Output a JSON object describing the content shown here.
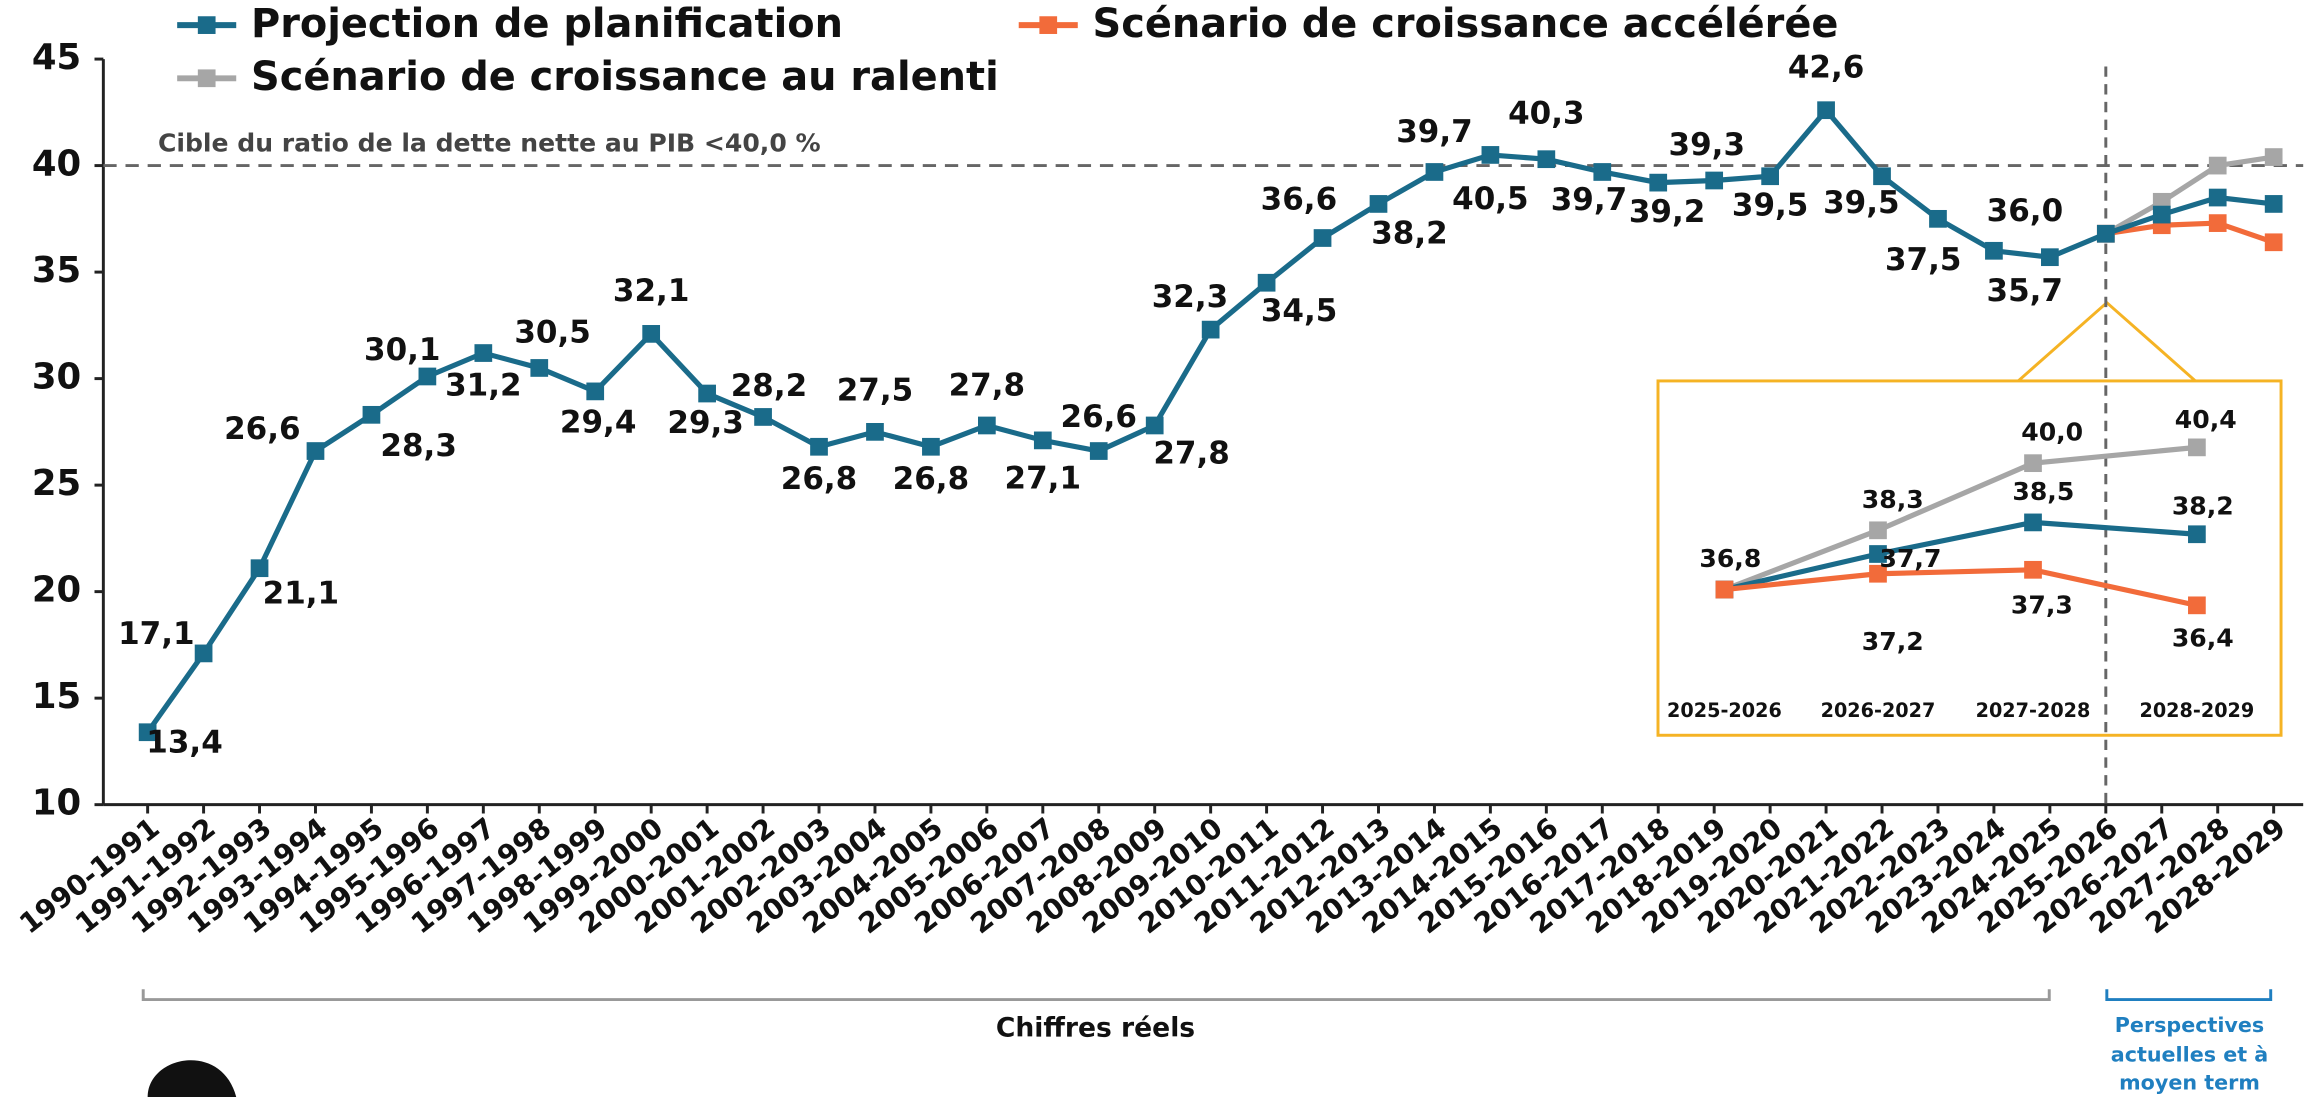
{
  "chart_data": {
    "type": "line",
    "categories": [
      "1990-1991",
      "1991-1992",
      "1992-1993",
      "1993-1994",
      "1994-1995",
      "1995-1996",
      "1996-1997",
      "1997-1998",
      "1998-1999",
      "1999-2000",
      "2000-2001",
      "2001-2002",
      "2002-2003",
      "2003-2004",
      "2004-2005",
      "2005-2006",
      "2006-2007",
      "2007-2008",
      "2008-2009",
      "2009-2010",
      "2010-2011",
      "2011-2012",
      "2012-2013",
      "2013-2014",
      "2014-2015",
      "2015-2016",
      "2016-2017",
      "2017-2018",
      "2018-2019",
      "2019-2020",
      "2020-2021",
      "2021-2022",
      "2022-2023",
      "2023-2024",
      "2024-2025",
      "2025-2026",
      "2026-2027",
      "2027-2028",
      "2028-2029"
    ],
    "series": [
      {
        "name": "Projection de planification",
        "color": "#1a6b8a",
        "values": [
          13.4,
          17.1,
          21.1,
          26.6,
          28.3,
          30.1,
          31.2,
          30.5,
          29.4,
          32.1,
          29.3,
          28.2,
          26.8,
          27.5,
          26.8,
          27.8,
          27.1,
          26.6,
          27.8,
          32.3,
          34.5,
          36.6,
          38.2,
          39.7,
          40.5,
          40.3,
          39.7,
          39.2,
          39.3,
          39.5,
          42.6,
          39.5,
          37.5,
          36.0,
          35.7,
          36.8,
          37.7,
          38.5,
          38.2
        ],
        "value_labels": [
          "13,4",
          "17,1",
          "21,1",
          "26,6",
          "28,3",
          "30,1",
          "31,2",
          "30,5",
          "29,4",
          "32,1",
          "29,3",
          "28,2",
          "26,8",
          "27,5",
          "26,8",
          "27,8",
          "27,1",
          "26,6",
          "27,8",
          "32,3",
          "34,5",
          "36,6",
          "38,2",
          "39,7",
          "40,5",
          "40,3",
          "39,7",
          "39,2",
          "39,3",
          "39,5",
          "42,6",
          "39,5",
          "37,5",
          "36,0",
          "35,7",
          "36,8",
          "37,7",
          "38,5",
          "38,2"
        ]
      },
      {
        "name": "Scénario de croissance accélérée",
        "color": "#f26b3a",
        "values": [
          null,
          null,
          null,
          null,
          null,
          null,
          null,
          null,
          null,
          null,
          null,
          null,
          null,
          null,
          null,
          null,
          null,
          null,
          null,
          null,
          null,
          null,
          null,
          null,
          null,
          null,
          null,
          null,
          null,
          null,
          null,
          null,
          null,
          null,
          null,
          36.8,
          37.2,
          37.3,
          36.4
        ],
        "value_labels": [
          null,
          null,
          null,
          null,
          null,
          null,
          null,
          null,
          null,
          null,
          null,
          null,
          null,
          null,
          null,
          null,
          null,
          null,
          null,
          null,
          null,
          null,
          null,
          null,
          null,
          null,
          null,
          null,
          null,
          null,
          null,
          null,
          null,
          null,
          null,
          "36,8",
          "37,2",
          "37,3",
          "36,4"
        ]
      },
      {
        "name": "Scénario de croissance au ralenti",
        "color": "#a6a6a6",
        "values": [
          null,
          null,
          null,
          null,
          null,
          null,
          null,
          null,
          null,
          null,
          null,
          null,
          null,
          null,
          null,
          null,
          null,
          null,
          null,
          null,
          null,
          null,
          null,
          null,
          null,
          null,
          null,
          null,
          null,
          null,
          null,
          null,
          null,
          null,
          null,
          36.8,
          38.3,
          40.0,
          40.4
        ],
        "value_labels": [
          null,
          null,
          null,
          null,
          null,
          null,
          null,
          null,
          null,
          null,
          null,
          null,
          null,
          null,
          null,
          null,
          null,
          null,
          null,
          null,
          null,
          null,
          null,
          null,
          null,
          null,
          null,
          null,
          null,
          null,
          null,
          null,
          null,
          null,
          null,
          "36,8",
          "38,3",
          "40,0",
          "40,4"
        ]
      }
    ],
    "ylim": [
      10,
      45
    ],
    "yticks": [
      10,
      15,
      20,
      25,
      30,
      35,
      40,
      45
    ],
    "target": {
      "value": 40,
      "label": "Cible du ratio de la dette nette au PIB <40,0 %"
    },
    "actual_label": "Chiffres réels",
    "forecast_label": [
      "Perspectives",
      "actuelles et à",
      "moyen term"
    ]
  }
}
